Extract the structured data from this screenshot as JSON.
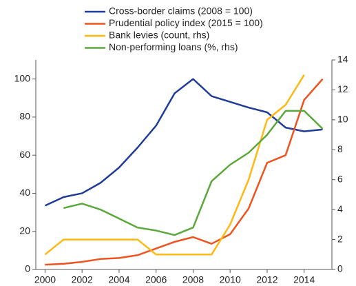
{
  "chart_data": {
    "type": "line",
    "x": [
      2000,
      2001,
      2002,
      2003,
      2004,
      2005,
      2006,
      2007,
      2008,
      2009,
      2010,
      2011,
      2012,
      2013,
      2014,
      2015
    ],
    "series": [
      {
        "name": "Cross-border claims (2008 = 100)",
        "color": "#1f3c98",
        "axis": "y",
        "values": [
          33.5,
          38,
          40,
          45.5,
          53.5,
          64,
          75.5,
          92.5,
          100,
          91,
          88,
          85,
          82.5,
          74.5,
          72.5,
          73.5
        ]
      },
      {
        "name": "Prudential policy index (2015 = 100)",
        "color": "#f0521e",
        "axis": "y",
        "values": [
          2.5,
          3,
          4,
          5.5,
          6,
          7.5,
          11,
          14.5,
          17,
          13.5,
          18.5,
          32,
          56,
          60,
          89,
          100
        ]
      },
      {
        "name": "Bank levies (count, rhs)",
        "color": "#fdb813",
        "axis": "y2",
        "values": [
          1,
          2,
          2,
          2,
          2,
          2,
          1,
          1,
          1,
          1,
          3,
          6,
          10,
          11,
          13,
          null
        ]
      },
      {
        "name": "Non-performing loans (%, rhs)",
        "color": "#5aa83a",
        "axis": "y2",
        "values": [
          null,
          4.1,
          4.4,
          4.0,
          3.4,
          2.8,
          2.6,
          2.3,
          2.8,
          5.9,
          7.0,
          7.8,
          9.0,
          10.6,
          10.6,
          9.4
        ]
      }
    ],
    "xlim": [
      1999.5,
      2015.5
    ],
    "xticks": [
      2000,
      2002,
      2004,
      2006,
      2008,
      2010,
      2012,
      2014
    ],
    "ylim": [
      0,
      110
    ],
    "yticks": [
      0,
      20,
      40,
      60,
      80,
      100
    ],
    "y2lim": [
      0,
      14
    ],
    "y2ticks": [
      0,
      2,
      4,
      6,
      8,
      10,
      12,
      14
    ]
  }
}
